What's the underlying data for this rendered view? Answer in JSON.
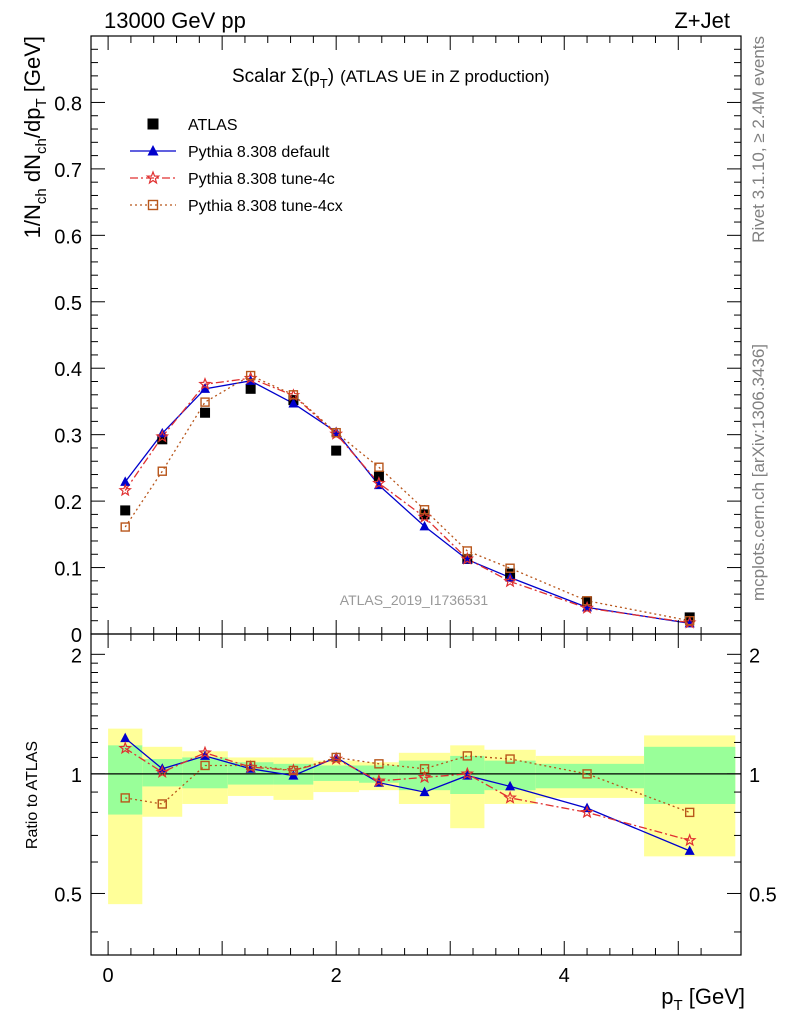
{
  "header": {
    "left": "13000 GeV pp",
    "right": "Z+Jet"
  },
  "side_text": {
    "top": "Rivet 3.1.10, ≥ 2.4M events",
    "bottom": "mcplots.cern.ch [arXiv:1306.3436]"
  },
  "watermark": "ATLAS_2019_I1736531",
  "chart_data": [
    {
      "type": "line",
      "title": "Scalar Σ(pT) (ATLAS UE in Z production)",
      "title_parts": {
        "main": "Scalar Σ(p",
        "sub": "T",
        "close": ")",
        "rest": "(ATLAS UE in Z production)"
      },
      "ylabel": "1/Nch dNch/dpT [GeV]",
      "ylabel_parts": {
        "a": "1/N",
        "a_sub": "ch",
        "b": " dN",
        "b_sub": "ch",
        "c": "/dp",
        "c_sub": "T",
        "d": " [GeV]"
      },
      "xlim": [
        -0.15,
        5.55
      ],
      "ylim": [
        0,
        0.9
      ],
      "yticks": [
        0,
        0.1,
        0.2,
        0.3,
        0.4,
        0.5,
        0.6,
        0.7,
        0.8
      ],
      "ytick_labels": [
        "0",
        "0.1",
        "0.2",
        "0.3",
        "0.4",
        "0.5",
        "0.6",
        "0.7",
        "0.8"
      ],
      "legend_position": "top-left",
      "x": [
        0.15,
        0.475,
        0.85,
        1.25,
        1.625,
        2.0,
        2.375,
        2.775,
        3.15,
        3.525,
        4.2,
        5.1
      ],
      "series": [
        {
          "name": "ATLAS",
          "color": "#000000",
          "marker": "filled-square",
          "values": [
            0.186,
            0.293,
            0.333,
            0.369,
            0.352,
            0.276,
            0.237,
            0.18,
            0.113,
            0.091,
            0.049,
            0.025
          ]
        },
        {
          "name": "Pythia 8.308 default",
          "color": "#0000cc",
          "marker": "filled-triangle",
          "values": [
            0.229,
            0.302,
            0.369,
            0.381,
            0.347,
            0.304,
            0.224,
            0.162,
            0.112,
            0.085,
            0.04,
            0.016
          ]
        },
        {
          "name": "Pythia 8.308 tune-4c",
          "color": "#e03030",
          "marker": "open-star",
          "values": [
            0.216,
            0.297,
            0.376,
            0.385,
            0.359,
            0.301,
            0.227,
            0.176,
            0.113,
            0.079,
            0.039,
            0.017
          ]
        },
        {
          "name": "Pythia 8.308 tune-4cx",
          "color": "#b8561b",
          "marker": "open-square",
          "values": [
            0.161,
            0.245,
            0.349,
            0.389,
            0.36,
            0.303,
            0.251,
            0.187,
            0.125,
            0.099,
            0.05,
            0.02
          ]
        }
      ]
    },
    {
      "type": "line",
      "title": "",
      "ylabel": "Ratio to ATLAS",
      "xlabel": "pT [GeV]",
      "xlabel_parts": {
        "main": "p",
        "sub": "T",
        "rest": " [GeV]"
      },
      "xlim": [
        -0.15,
        5.55
      ],
      "ylim": [
        0.35,
        2.25
      ],
      "yticks": [
        0.5,
        1,
        2
      ],
      "ytick_labels": [
        "0.5",
        "1",
        "2"
      ],
      "xticks": [
        0,
        2,
        4
      ],
      "xtick_labels": [
        "0",
        "2",
        "4"
      ],
      "reference_line": 1,
      "bins": [
        [
          0,
          0.3
        ],
        [
          0.3,
          0.65
        ],
        [
          0.65,
          1.05
        ],
        [
          1.05,
          1.45
        ],
        [
          1.45,
          1.8
        ],
        [
          1.8,
          2.2
        ],
        [
          2.2,
          2.55
        ],
        [
          2.55,
          3.0
        ],
        [
          3.0,
          3.3
        ],
        [
          3.3,
          3.75
        ],
        [
          3.75,
          4.7
        ],
        [
          4.7,
          5.5
        ]
      ],
      "band_stat": [
        [
          0.79,
          1.18
        ],
        [
          0.93,
          1.09
        ],
        [
          0.92,
          1.1
        ],
        [
          0.94,
          1.07
        ],
        [
          0.94,
          1.06
        ],
        [
          0.96,
          1.05
        ],
        [
          0.95,
          1.05
        ],
        [
          0.91,
          1.08
        ],
        [
          0.89,
          1.11
        ],
        [
          0.91,
          1.08
        ],
        [
          0.92,
          1.06
        ],
        [
          0.84,
          1.17
        ]
      ],
      "band_syst": [
        [
          0.47,
          1.3
        ],
        [
          0.78,
          1.17
        ],
        [
          0.84,
          1.14
        ],
        [
          0.88,
          1.1
        ],
        [
          0.86,
          1.1
        ],
        [
          0.9,
          1.08
        ],
        [
          0.91,
          1.07
        ],
        [
          0.84,
          1.13
        ],
        [
          0.73,
          1.18
        ],
        [
          0.84,
          1.15
        ],
        [
          0.87,
          1.11
        ],
        [
          0.62,
          1.25
        ]
      ],
      "series": [
        {
          "name": "Pythia 8.308 default",
          "color": "#0000cc",
          "marker": "filled-triangle",
          "values": [
            1.23,
            1.03,
            1.11,
            1.03,
            0.99,
            1.1,
            0.95,
            0.9,
            0.99,
            0.93,
            0.82,
            0.64
          ]
        },
        {
          "name": "Pythia 8.308 tune-4c",
          "color": "#e03030",
          "marker": "open-star",
          "values": [
            1.16,
            1.01,
            1.13,
            1.04,
            1.02,
            1.09,
            0.96,
            0.98,
            1.0,
            0.87,
            0.8,
            0.68
          ]
        },
        {
          "name": "Pythia 8.308 tune-4cx",
          "color": "#b8561b",
          "marker": "open-square",
          "values": [
            0.87,
            0.84,
            1.05,
            1.05,
            1.02,
            1.1,
            1.06,
            1.03,
            1.11,
            1.09,
            1.0,
            0.8
          ]
        }
      ]
    }
  ]
}
